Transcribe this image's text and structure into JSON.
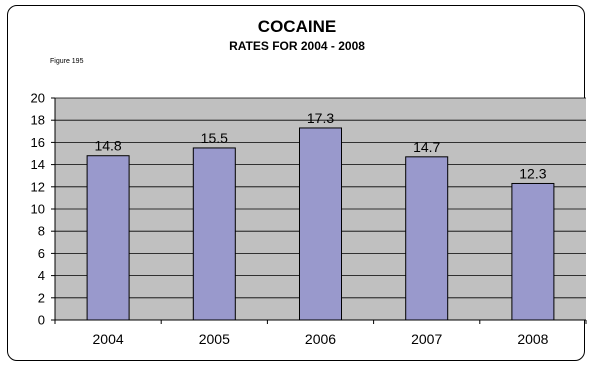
{
  "chart_data": {
    "type": "bar",
    "title": "COCAINE",
    "subtitle": "RATES FOR 2004 - 2008",
    "figure_label": "Figure 195",
    "categories": [
      "2004",
      "2005",
      "2006",
      "2007",
      "2008"
    ],
    "values": [
      14.8,
      15.5,
      17.3,
      14.7,
      12.3
    ],
    "value_labels": [
      "14.8",
      "15.5",
      "17.3",
      "14.7",
      "12.3"
    ],
    "ylim": [
      0,
      20
    ],
    "yticks": [
      0,
      2,
      4,
      6,
      8,
      10,
      12,
      14,
      16,
      18,
      20
    ],
    "grid": true,
    "legend": "none",
    "colors": {
      "bar": "#9999cc",
      "plot_background": "#c0c0c0",
      "bar_border": "#000000"
    }
  }
}
